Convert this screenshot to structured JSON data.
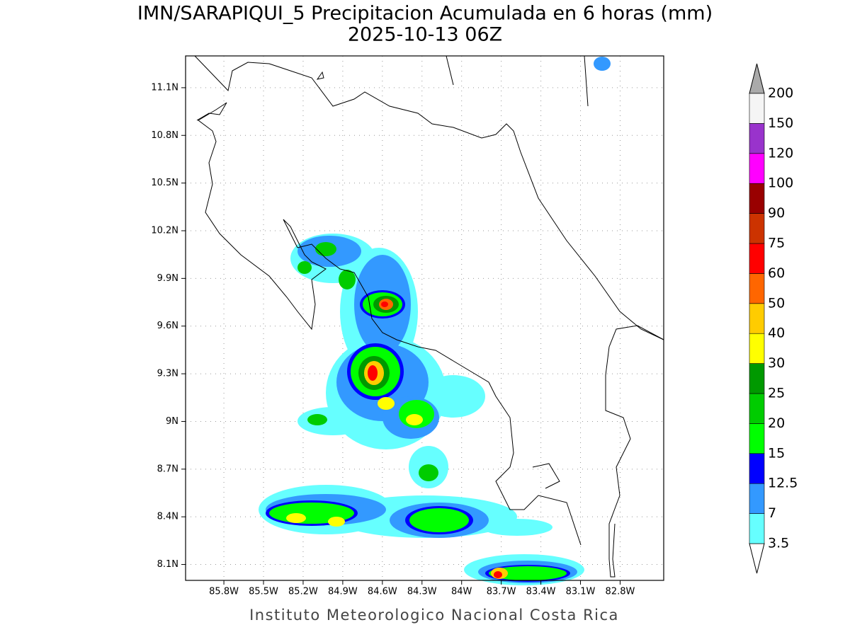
{
  "map": {
    "title": "IMN/SARAPIQUI_5 Precipitacion Acumulada en 6 horas (mm)",
    "subtitle": "2025-10-13 06Z",
    "footer": "Instituto Meteorologico Nacional Costa Rica",
    "xlim": [
      -86.09,
      -82.47
    ],
    "ylim": [
      8.0,
      11.3
    ],
    "xticks": [
      {
        "value": -85.8,
        "label": "85.8W"
      },
      {
        "value": -85.5,
        "label": "85.5W"
      },
      {
        "value": -85.2,
        "label": "85.2W"
      },
      {
        "value": -84.9,
        "label": "84.9W"
      },
      {
        "value": -84.6,
        "label": "84.6W"
      },
      {
        "value": -84.3,
        "label": "84.3W"
      },
      {
        "value": -84.0,
        "label": "84W"
      },
      {
        "value": -83.7,
        "label": "83.7W"
      },
      {
        "value": -83.4,
        "label": "83.4W"
      },
      {
        "value": -83.1,
        "label": "83.1W"
      },
      {
        "value": -82.8,
        "label": "82.8W"
      }
    ],
    "yticks": [
      {
        "value": 8.1,
        "label": "8.1N"
      },
      {
        "value": 8.4,
        "label": "8.4N"
      },
      {
        "value": 8.7,
        "label": "8.7N"
      },
      {
        "value": 9.0,
        "label": "9N"
      },
      {
        "value": 9.3,
        "label": "9.3N"
      },
      {
        "value": 9.6,
        "label": "9.6N"
      },
      {
        "value": 9.9,
        "label": "9.9N"
      },
      {
        "value": 10.2,
        "label": "10.2N"
      },
      {
        "value": 10.5,
        "label": "10.5N"
      },
      {
        "value": 10.8,
        "label": "10.8N"
      },
      {
        "value": 11.1,
        "label": "11.1N"
      }
    ],
    "colorbar": {
      "levels": [
        3.5,
        7,
        12.5,
        15,
        20,
        25,
        30,
        40,
        50,
        60,
        75,
        90,
        100,
        120,
        150,
        200
      ],
      "colors": [
        "#66ffff",
        "#3399ff",
        "#0000ff",
        "#00ff00",
        "#00cc00",
        "#009900",
        "#ffff00",
        "#ffcc00",
        "#ff6600",
        "#ff0000",
        "#cc3300",
        "#990000",
        "#ff00ff",
        "#9933cc",
        "#f5f5f5"
      ],
      "under_color": "#ffffff",
      "over_color": "#aaaaaa"
    }
  }
}
